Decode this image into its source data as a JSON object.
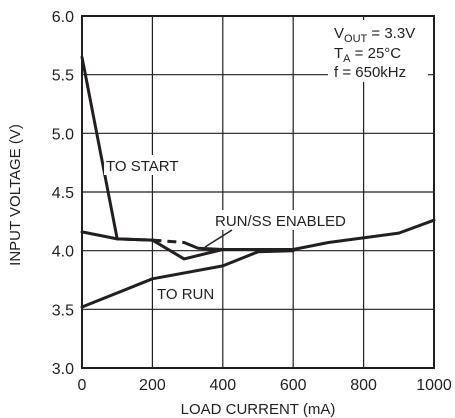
{
  "chart_data": {
    "type": "line",
    "xlabel": "LOAD CURRENT (mA)",
    "ylabel": "INPUT VOLTAGE (V)",
    "xlim": [
      0,
      1000
    ],
    "ylim": [
      3.0,
      6.0
    ],
    "x_ticks": [
      "0",
      "200",
      "400",
      "600",
      "800",
      "1000"
    ],
    "y_ticks": [
      "3.0",
      "3.5",
      "4.0",
      "4.5",
      "5.0",
      "5.5",
      "6.0"
    ],
    "grid": true,
    "legend": "none",
    "conditions": {
      "vout": {
        "main": "V",
        "sub": "OUT",
        "rest": " = 3.3V"
      },
      "ta": {
        "main": "T",
        "sub": "A",
        "rest": " = 25°C"
      },
      "f": "f = 650kHz"
    },
    "annotations": {
      "to_start": "TO START",
      "runss": "RUN/SS ENABLED",
      "to_run": "TO RUN"
    },
    "series": [
      {
        "style": "solid",
        "x": [
          0,
          100,
          200,
          290,
          400,
          600,
          700,
          900,
          1000
        ],
        "y": [
          5.65,
          4.1,
          4.09,
          3.93,
          4.01,
          4.01,
          4.07,
          4.15,
          4.26
        ]
      },
      {
        "style": "solid",
        "x": [
          0,
          100,
          200
        ],
        "y": [
          4.16,
          4.1,
          4.09
        ]
      },
      {
        "style": "dashed",
        "x": [
          200,
          290
        ],
        "y": [
          4.09,
          4.07
        ]
      },
      {
        "style": "solid",
        "x": [
          290,
          330,
          400,
          600
        ],
        "y": [
          4.07,
          4.02,
          4.01,
          4.01
        ]
      },
      {
        "style": "solid",
        "x": [
          0,
          200,
          400,
          500,
          600
        ],
        "y": [
          3.52,
          3.76,
          3.87,
          3.99,
          4.0
        ]
      }
    ]
  }
}
